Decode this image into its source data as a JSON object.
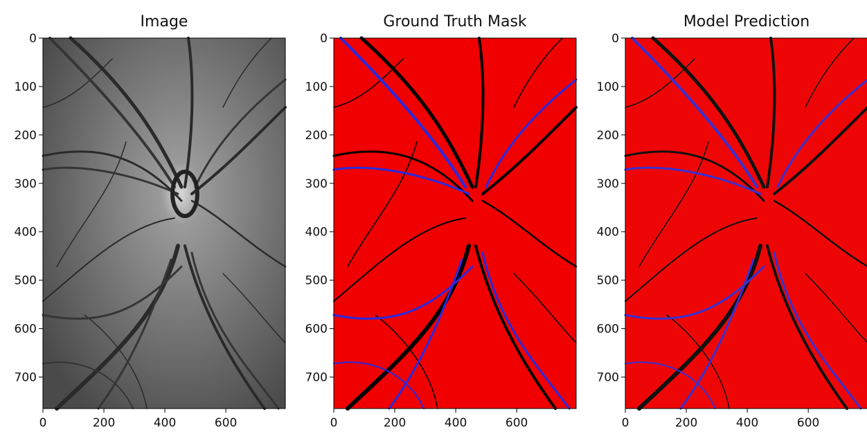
{
  "chart_data": [
    {
      "type": "image",
      "title": "Image",
      "xlim": [
        0,
        795
      ],
      "ylim": [
        765,
        0
      ],
      "xticks": [
        0,
        200,
        400,
        600
      ],
      "yticks": [
        0,
        100,
        200,
        300,
        400,
        500,
        600,
        700
      ]
    },
    {
      "type": "image",
      "title": "Ground Truth Mask",
      "xlim": [
        0,
        795
      ],
      "ylim": [
        765,
        0
      ],
      "xticks": [
        0,
        200,
        400,
        600
      ],
      "yticks": [
        0,
        100,
        200,
        300,
        400,
        500,
        600,
        700
      ]
    },
    {
      "type": "image",
      "title": "Model Prediction",
      "xlim": [
        0,
        795
      ],
      "ylim": [
        765,
        0
      ],
      "xticks": [
        0,
        200,
        400,
        600
      ],
      "yticks": [
        0,
        100,
        200,
        300,
        400,
        500,
        600,
        700
      ]
    }
  ]
}
